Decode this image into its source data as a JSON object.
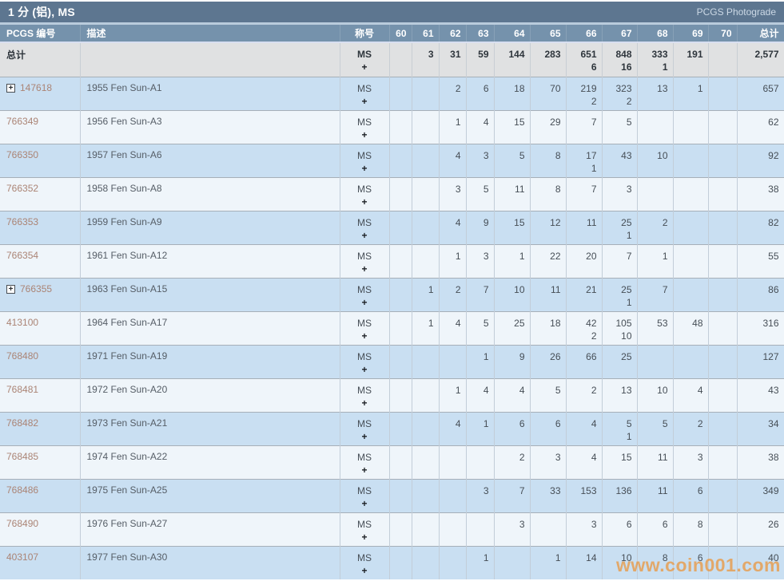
{
  "title_bar": {
    "title": "1 分 (铝), MS",
    "right_link": "PCGS Photograde"
  },
  "colors": {
    "title_bar_bg": "#5d7690",
    "header_bg": "#7592ac",
    "totals_row_bg": "#e0e1e2",
    "row_blue": "#c9dff2",
    "row_light": "#eff5fa",
    "pcgs_number_text": "#ab8475",
    "watermark_orange": "#f28718"
  },
  "table": {
    "columns": [
      "PCGS 编号",
      "描述",
      "称号",
      "60",
      "61",
      "62",
      "63",
      "64",
      "65",
      "66",
      "67",
      "68",
      "69",
      "70",
      "总计"
    ],
    "designation": [
      "MS",
      "+"
    ],
    "totals_row": {
      "label": "总计",
      "desc": "",
      "grades": [
        "",
        "3",
        "31",
        "59",
        "144",
        "283",
        "651|6",
        "848|16",
        "333|1",
        "191",
        ""
      ],
      "total": "2,577"
    },
    "rows": [
      {
        "pcgs_no": "147618",
        "has_expand": true,
        "desc": "1955 Fen Sun-A1",
        "grades": [
          "",
          "",
          "2",
          "6",
          "18",
          "70",
          "219|2",
          "323|2",
          "13",
          "1",
          ""
        ],
        "total": "657"
      },
      {
        "pcgs_no": "766349",
        "has_expand": false,
        "desc": "1956 Fen Sun-A3",
        "grades": [
          "",
          "",
          "1",
          "4",
          "15",
          "29",
          "7",
          "5",
          "",
          "",
          ""
        ],
        "total": "62"
      },
      {
        "pcgs_no": "766350",
        "has_expand": false,
        "desc": "1957 Fen Sun-A6",
        "grades": [
          "",
          "",
          "4",
          "3",
          "5",
          "8",
          "17|1",
          "43",
          "10",
          "",
          ""
        ],
        "total": "92"
      },
      {
        "pcgs_no": "766352",
        "has_expand": false,
        "desc": "1958 Fen Sun-A8",
        "grades": [
          "",
          "",
          "3",
          "5",
          "11",
          "8",
          "7",
          "3",
          "",
          "",
          ""
        ],
        "total": "38"
      },
      {
        "pcgs_no": "766353",
        "has_expand": false,
        "desc": "1959 Fen Sun-A9",
        "grades": [
          "",
          "",
          "4",
          "9",
          "15",
          "12",
          "11",
          "25|1",
          "2",
          "",
          ""
        ],
        "total": "82"
      },
      {
        "pcgs_no": "766354",
        "has_expand": false,
        "desc": "1961 Fen Sun-A12",
        "grades": [
          "",
          "",
          "1",
          "3",
          "1",
          "22",
          "20",
          "7",
          "1",
          "",
          ""
        ],
        "total": "55"
      },
      {
        "pcgs_no": "766355",
        "has_expand": true,
        "desc": "1963 Fen Sun-A15",
        "grades": [
          "",
          "1",
          "2",
          "7",
          "10",
          "11",
          "21",
          "25|1",
          "7",
          "",
          ""
        ],
        "total": "86"
      },
      {
        "pcgs_no": "413100",
        "has_expand": false,
        "desc": "1964 Fen Sun-A17",
        "grades": [
          "",
          "1",
          "4",
          "5",
          "25",
          "18",
          "42|2",
          "105|10",
          "53",
          "48",
          ""
        ],
        "total": "316"
      },
      {
        "pcgs_no": "768480",
        "has_expand": false,
        "desc": "1971 Fen Sun-A19",
        "grades": [
          "",
          "",
          "",
          "1",
          "9",
          "26",
          "66",
          "25",
          "",
          "",
          ""
        ],
        "total": "127"
      },
      {
        "pcgs_no": "768481",
        "has_expand": false,
        "desc": "1972 Fen Sun-A20",
        "grades": [
          "",
          "",
          "1",
          "4",
          "4",
          "5",
          "2",
          "13",
          "10",
          "4",
          ""
        ],
        "total": "43"
      },
      {
        "pcgs_no": "768482",
        "has_expand": false,
        "desc": "1973 Fen Sun-A21",
        "grades": [
          "",
          "",
          "4",
          "1",
          "6",
          "6",
          "4",
          "5|1",
          "5",
          "2",
          ""
        ],
        "total": "34"
      },
      {
        "pcgs_no": "768485",
        "has_expand": false,
        "desc": "1974 Fen Sun-A22",
        "grades": [
          "",
          "",
          "",
          "",
          "2",
          "3",
          "4",
          "15",
          "11",
          "3",
          ""
        ],
        "total": "38"
      },
      {
        "pcgs_no": "768486",
        "has_expand": false,
        "desc": "1975 Fen Sun-A25",
        "grades": [
          "",
          "",
          "",
          "3",
          "7",
          "33",
          "153",
          "136",
          "11",
          "6",
          ""
        ],
        "total": "349"
      },
      {
        "pcgs_no": "768490",
        "has_expand": false,
        "desc": "1976 Fen Sun-A27",
        "grades": [
          "",
          "",
          "",
          "",
          "3",
          "",
          "3",
          "6",
          "6",
          "8",
          ""
        ],
        "total": "26"
      },
      {
        "pcgs_no": "403107",
        "has_expand": false,
        "desc": "1977 Fen Sun-A30",
        "grades": [
          "",
          "",
          "",
          "1",
          "",
          "1",
          "14",
          "10",
          "8",
          "6",
          ""
        ],
        "total": "40"
      }
    ]
  },
  "watermark": "www.coin001.com",
  "icons": {
    "expand_icon_glyph": "+"
  }
}
